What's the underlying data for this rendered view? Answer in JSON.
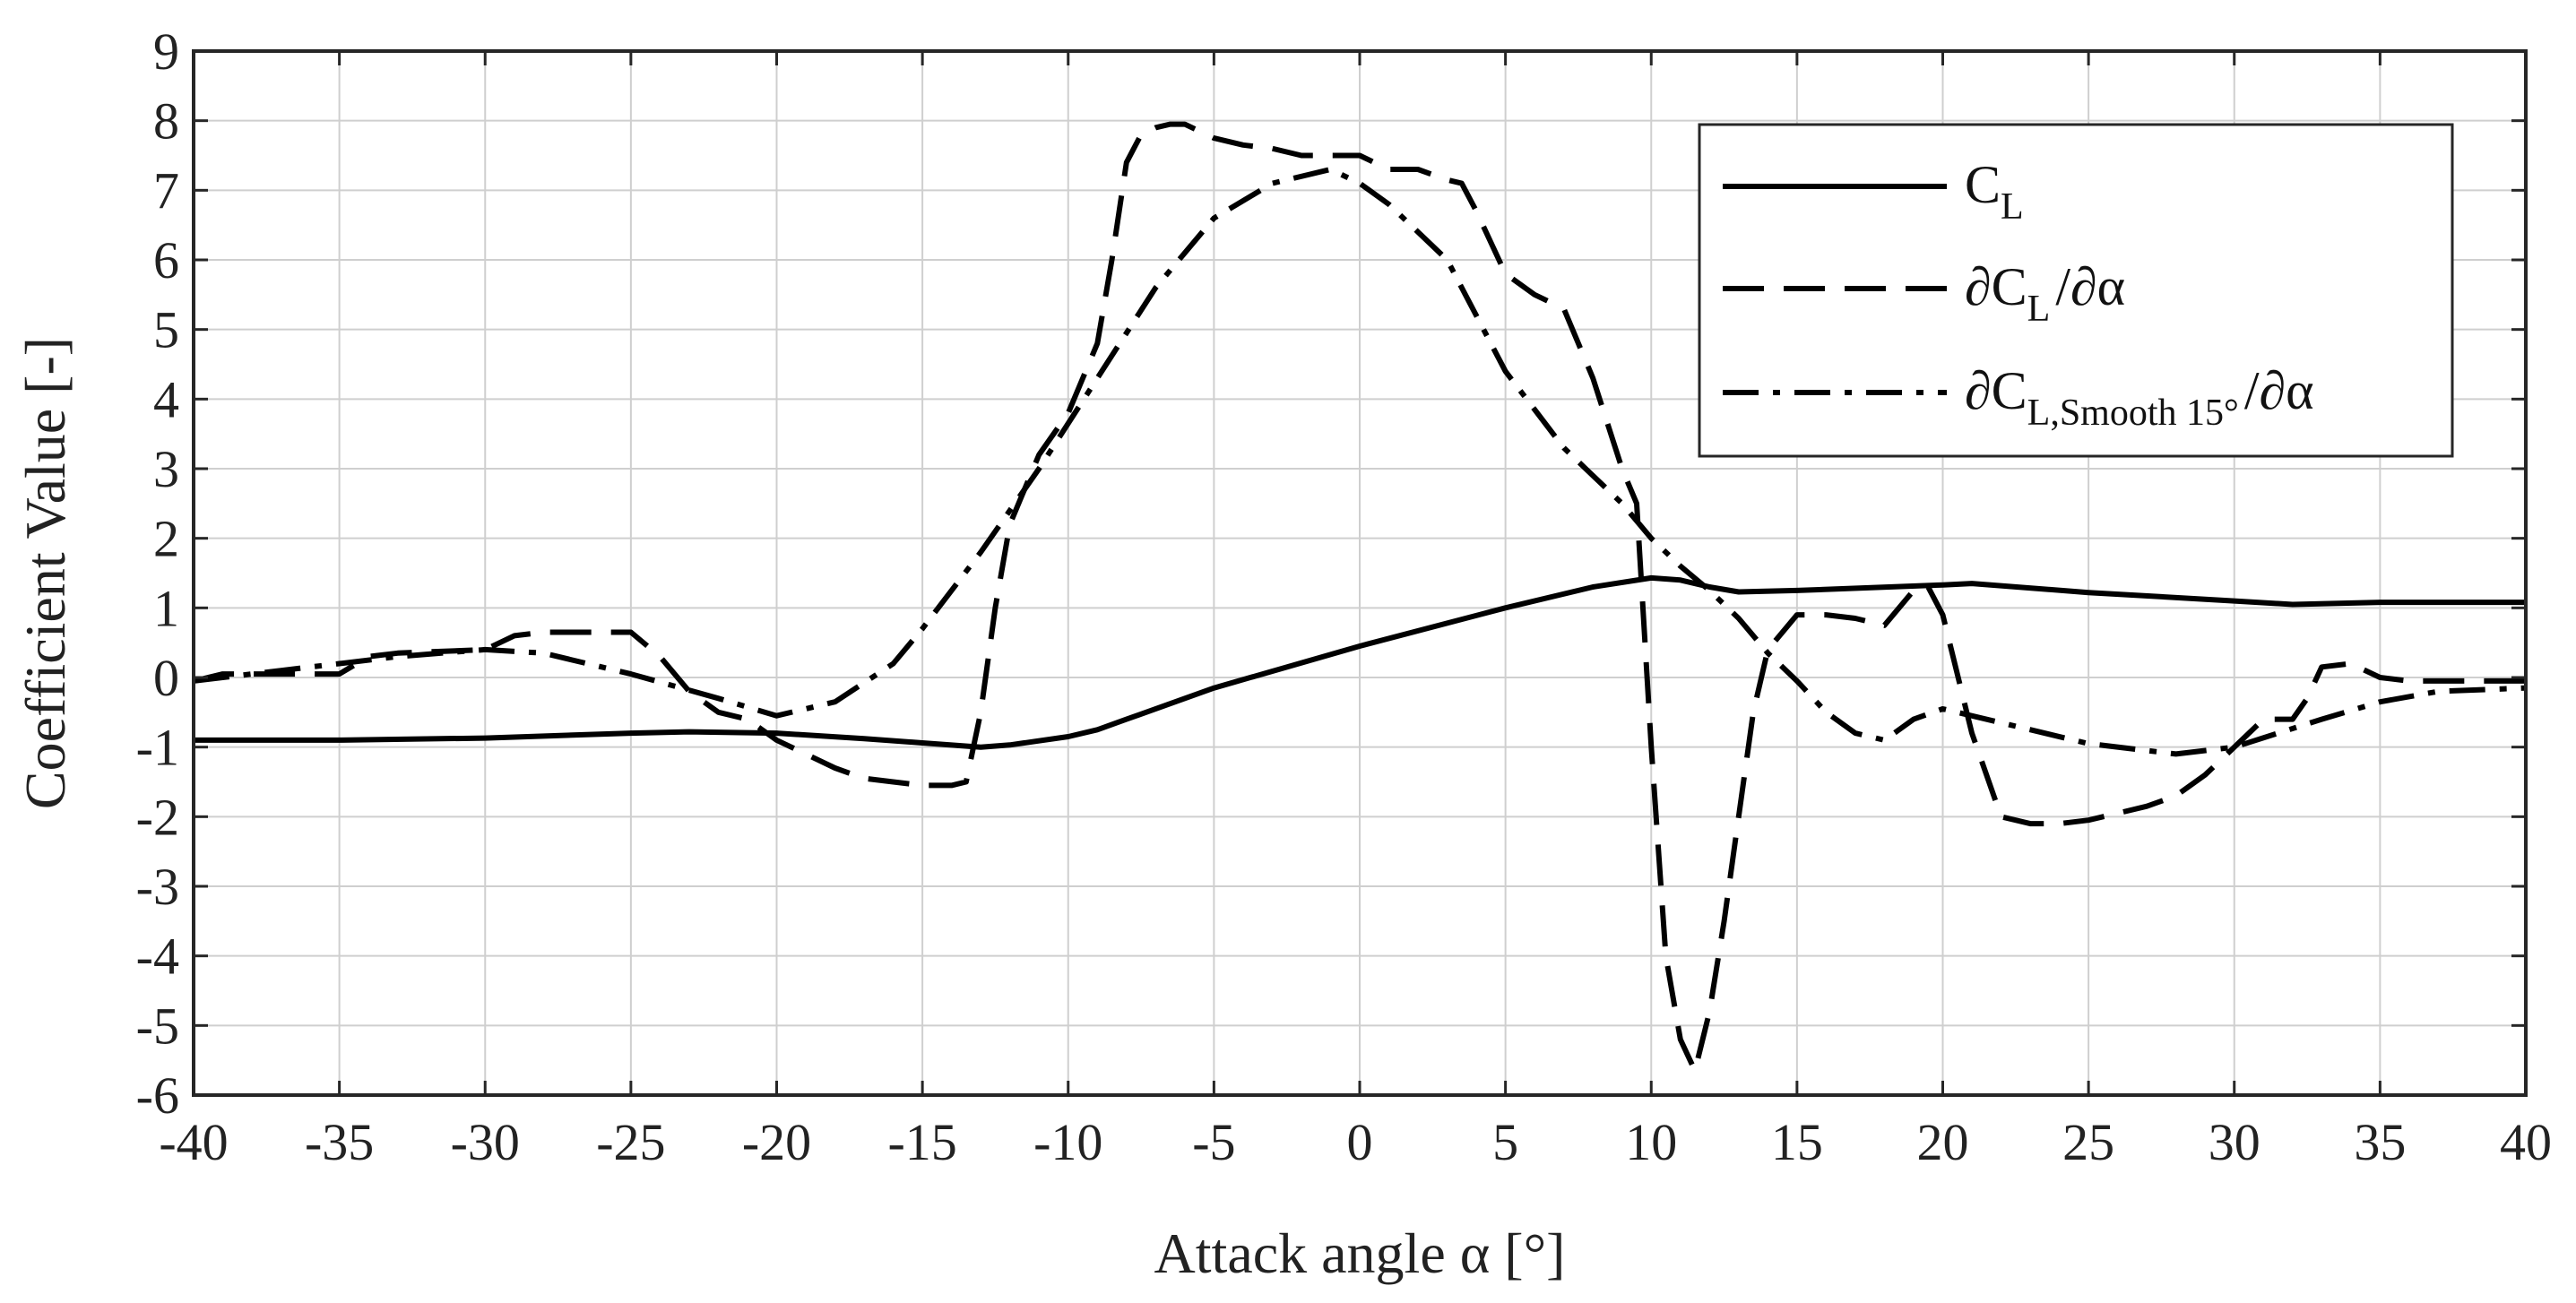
{
  "chart_data": {
    "type": "line",
    "title": "",
    "xlabel": "Attack angle α [°]",
    "ylabel": "Coefficient Value [-]",
    "xlim": [
      -40,
      40
    ],
    "ylim": [
      -6,
      9
    ],
    "xticks": [
      -40,
      -35,
      -30,
      -25,
      -20,
      -15,
      -10,
      -5,
      0,
      5,
      10,
      15,
      20,
      25,
      30,
      35,
      40
    ],
    "yticks": [
      -6,
      -5,
      -4,
      -3,
      -2,
      -1,
      0,
      1,
      2,
      3,
      4,
      5,
      6,
      7,
      8,
      9
    ],
    "grid": true,
    "legend_position": "top-right",
    "series": [
      {
        "name": "C_L",
        "legend": {
          "main": "C",
          "sub": "L",
          "tail": ""
        },
        "style": "solid",
        "color": "#000000",
        "x": [
          -40,
          -35,
          -30,
          -25,
          -23,
          -20,
          -17,
          -15,
          -13,
          -12,
          -10,
          -9,
          -8,
          -5,
          0,
          5,
          8,
          10,
          11,
          12,
          13,
          15,
          20,
          21,
          25,
          30,
          32,
          35,
          40
        ],
        "y": [
          -0.9,
          -0.9,
          -0.87,
          -0.8,
          -0.78,
          -0.8,
          -0.88,
          -0.94,
          -1.0,
          -0.97,
          -0.85,
          -0.75,
          -0.6,
          -0.15,
          0.45,
          1.0,
          1.3,
          1.43,
          1.4,
          1.3,
          1.23,
          1.25,
          1.33,
          1.35,
          1.22,
          1.1,
          1.05,
          1.08,
          1.08
        ]
      },
      {
        "name": "∂C_L/∂α",
        "legend": {
          "main": "∂C",
          "sub": "L",
          "tail": "/∂α"
        },
        "style": "dashed",
        "color": "#000000",
        "x": [
          -40,
          -39,
          -37,
          -35,
          -34,
          -33,
          -30,
          -29,
          -28,
          -26,
          -25,
          -24,
          -23,
          -22,
          -21,
          -20,
          -19,
          -18,
          -17,
          -16,
          -15,
          -14,
          -13.5,
          -13,
          -12.5,
          -12,
          -11,
          -10,
          -9,
          -8.5,
          -8,
          -7.5,
          -7,
          -6.5,
          -6,
          -5,
          -4,
          -3,
          -2,
          -1,
          0,
          0.5,
          1,
          2,
          3,
          3.5,
          4,
          5,
          6,
          7,
          8,
          9,
          9.5,
          10,
          10.5,
          11,
          11.5,
          12,
          12.5,
          13,
          13.5,
          14,
          15,
          16,
          17,
          18,
          19,
          19.5,
          20,
          21,
          22,
          23,
          24,
          25,
          26,
          27,
          28,
          29,
          30,
          31,
          32,
          32.5,
          33,
          34,
          35,
          36,
          38,
          40
        ],
        "y": [
          -0.05,
          0.05,
          0.05,
          0.05,
          0.3,
          0.35,
          0.4,
          0.6,
          0.65,
          0.65,
          0.65,
          0.3,
          -0.2,
          -0.5,
          -0.6,
          -0.9,
          -1.1,
          -1.3,
          -1.45,
          -1.5,
          -1.55,
          -1.55,
          -1.5,
          -0.5,
          1.0,
          2.2,
          3.2,
          3.8,
          4.8,
          6.0,
          7.4,
          7.8,
          7.9,
          7.95,
          7.95,
          7.75,
          7.65,
          7.6,
          7.5,
          7.5,
          7.5,
          7.4,
          7.3,
          7.3,
          7.15,
          7.1,
          6.7,
          5.8,
          5.5,
          5.3,
          4.3,
          3.0,
          2.5,
          -1.0,
          -4.0,
          -5.2,
          -5.65,
          -4.8,
          -3.5,
          -2.0,
          -0.5,
          0.4,
          0.9,
          0.9,
          0.85,
          0.75,
          1.25,
          1.3,
          0.9,
          -0.8,
          -2.0,
          -2.1,
          -2.1,
          -2.05,
          -1.95,
          -1.85,
          -1.7,
          -1.4,
          -1.0,
          -0.6,
          -0.6,
          -0.3,
          0.15,
          0.2,
          0.0,
          -0.05,
          -0.05,
          -0.05
        ]
      },
      {
        "name": "∂C_L,Smooth 15°/∂α",
        "legend": {
          "main": "∂C",
          "sub": "L,Smooth 15°",
          "tail": "/∂α"
        },
        "style": "dashdot",
        "color": "#000000",
        "x": [
          -40,
          -37,
          -35,
          -33,
          -30,
          -28,
          -25,
          -22,
          -20,
          -18,
          -16,
          -15,
          -13,
          -11,
          -9,
          -7,
          -5,
          -3,
          -1,
          0,
          1,
          3,
          5,
          7,
          9,
          10,
          11,
          12,
          13,
          14,
          15,
          16,
          17,
          18,
          19,
          20,
          22,
          25,
          28,
          30,
          33,
          35,
          37,
          40
        ],
        "y": [
          -0.05,
          0.1,
          0.2,
          0.3,
          0.4,
          0.35,
          0.05,
          -0.3,
          -0.55,
          -0.35,
          0.2,
          0.7,
          1.8,
          3.0,
          4.3,
          5.6,
          6.6,
          7.1,
          7.3,
          7.1,
          6.8,
          6.0,
          4.4,
          3.3,
          2.5,
          2.0,
          1.6,
          1.25,
          0.85,
          0.35,
          -0.05,
          -0.5,
          -0.8,
          -0.9,
          -0.6,
          -0.45,
          -0.65,
          -0.95,
          -1.1,
          -1.0,
          -0.6,
          -0.35,
          -0.2,
          -0.15
        ]
      }
    ]
  }
}
